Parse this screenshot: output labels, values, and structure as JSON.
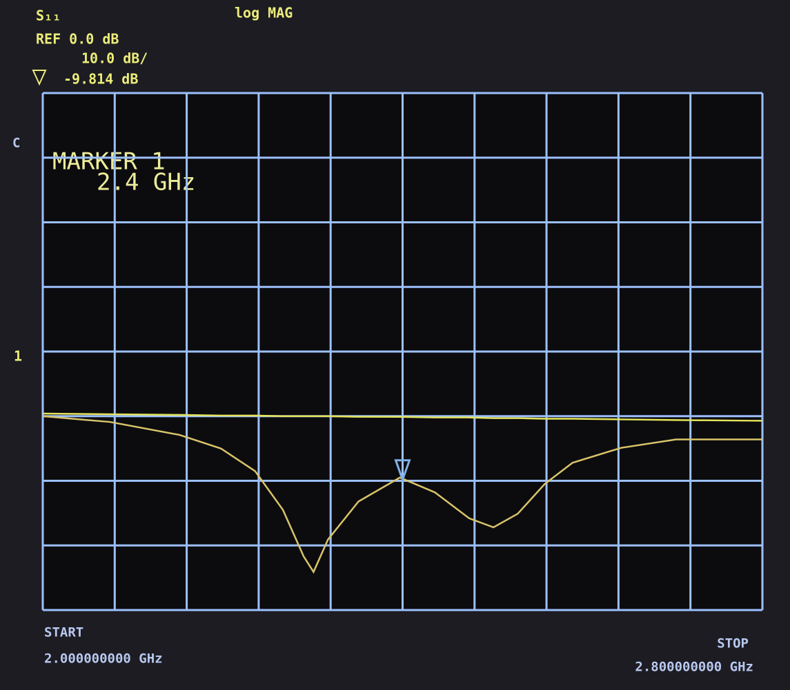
{
  "chart_data": {
    "type": "line",
    "title": "log MAG",
    "parameter": "S₁₁",
    "ref_label": "REF 0.0 dB",
    "scale_label": "10.0 dB/",
    "marker_readout": "-9.814 dB",
    "channel": "C",
    "ref_marker": "1",
    "marker_name": "MARKER 1",
    "marker_freq": "2.4 GHz",
    "start_label": "START",
    "start_value": "2.000000000 GHz",
    "stop_label": "STOP",
    "stop_value": "2.800000000 GHz",
    "x": [
      2.0,
      2.075,
      2.152,
      2.198,
      2.236,
      2.267,
      2.29,
      2.301,
      2.317,
      2.351,
      2.397,
      2.436,
      2.474,
      2.501,
      2.528,
      2.558,
      2.589,
      2.643,
      2.704,
      2.788,
      2.8
    ],
    "series": [
      {
        "color": "#e4e45a",
        "values": [
          0.4,
          0.3,
          0.2,
          0.1,
          0.1,
          0,
          0,
          0,
          0,
          -0.1,
          -0.1,
          -0.2,
          -0.2,
          -0.3,
          -0.3,
          -0.4,
          -0.4,
          -0.5,
          -0.6,
          -0.7,
          -0.7
        ]
      },
      {
        "color": "#d9c46a",
        "values": [
          0,
          -0.9,
          -2.9,
          -5,
          -8.5,
          -14.5,
          -21.7,
          -24.1,
          -19.1,
          -13.2,
          -9.5,
          -11.8,
          -15.8,
          -17.2,
          -15.1,
          -10.5,
          -7.2,
          -4.9,
          -3.6,
          -3.6,
          -3.6
        ]
      }
    ],
    "marker": {
      "x": 2.4,
      "y": -9.814,
      "color": "#7fb0e8"
    },
    "xlim": [
      2.0,
      2.8
    ],
    "ylim": [
      -30,
      50
    ],
    "xticks": [
      2.0,
      2.08,
      2.16,
      2.24,
      2.32,
      2.4,
      2.48,
      2.56,
      2.64,
      2.72,
      2.8
    ],
    "yticks": [
      -30,
      -20,
      -10,
      0,
      10,
      20,
      30,
      40,
      50
    ],
    "grid": true,
    "grid_color": "#9cc0ff"
  }
}
